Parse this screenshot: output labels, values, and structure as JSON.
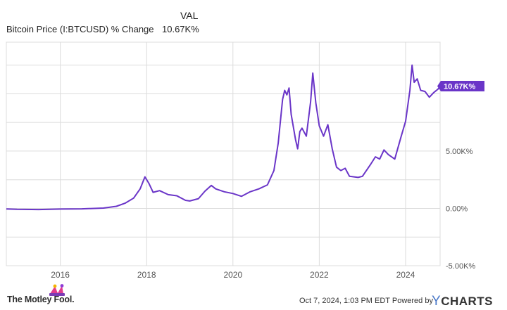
{
  "legend": {
    "column_header": "VAL",
    "series_name": "Bitcoin Price (I:BTCUSD) % Change",
    "series_value": "10.67K%"
  },
  "footer": {
    "logo_text": "The Motley Fool.",
    "timestamp": "Oct 7, 2024, 1:03 PM EDT",
    "powered_by": "Powered by",
    "brand_y": "Y",
    "brand_rest": "CHARTS"
  },
  "colors": {
    "line": "#6a35c8",
    "grid": "#dcdcdc",
    "axis_text": "#555555",
    "badge": "#6a35c8"
  },
  "chart_data": {
    "type": "line",
    "title": "",
    "xlabel": "",
    "ylabel": "",
    "xlim": [
      2014.75,
      2024.8
    ],
    "ylim": [
      -5000,
      14500
    ],
    "grid": true,
    "x_ticks": [
      2016,
      2018,
      2020,
      2022,
      2024
    ],
    "x_tick_labels": [
      "2016",
      "2018",
      "2020",
      "2022",
      "2024"
    ],
    "y_ticks": [
      -5000,
      0,
      5000
    ],
    "y_tick_labels": [
      "-5.00K%",
      "0.00%",
      "5.00K%"
    ],
    "series": [
      {
        "name": "Bitcoin Price (I:BTCUSD) % Change",
        "x": [
          2014.75,
          2015.0,
          2015.5,
          2016.0,
          2016.5,
          2017.0,
          2017.3,
          2017.5,
          2017.7,
          2017.85,
          2017.96,
          2018.05,
          2018.15,
          2018.3,
          2018.5,
          2018.7,
          2018.9,
          2019.0,
          2019.2,
          2019.35,
          2019.5,
          2019.6,
          2019.8,
          2020.0,
          2020.2,
          2020.4,
          2020.6,
          2020.8,
          2020.95,
          2021.05,
          2021.15,
          2021.2,
          2021.25,
          2021.3,
          2021.35,
          2021.45,
          2021.5,
          2021.55,
          2021.6,
          2021.7,
          2021.8,
          2021.85,
          2021.92,
          2022.0,
          2022.1,
          2022.2,
          2022.3,
          2022.4,
          2022.5,
          2022.6,
          2022.7,
          2022.9,
          2023.0,
          2023.2,
          2023.3,
          2023.4,
          2023.5,
          2023.6,
          2023.75,
          2023.9,
          2024.0,
          2024.1,
          2024.15,
          2024.2,
          2024.27,
          2024.35,
          2024.45,
          2024.55,
          2024.65,
          2024.75,
          2024.8
        ],
        "y": [
          -50,
          -80,
          -100,
          -60,
          -40,
          30,
          180,
          450,
          900,
          1700,
          2750,
          2200,
          1400,
          1550,
          1200,
          1100,
          700,
          650,
          850,
          1500,
          2000,
          1700,
          1450,
          1300,
          1050,
          1450,
          1700,
          2050,
          3300,
          5700,
          9500,
          10300,
          9900,
          10500,
          8200,
          6000,
          5200,
          6700,
          7000,
          6300,
          9300,
          11800,
          9200,
          7200,
          6300,
          7300,
          5200,
          3600,
          3300,
          3500,
          2800,
          2700,
          2800,
          3900,
          4500,
          4300,
          5100,
          4700,
          4300,
          6300,
          7600,
          10300,
          12500,
          11000,
          11300,
          10300,
          10200,
          9700,
          10100,
          10400,
          10670
        ]
      }
    ]
  }
}
